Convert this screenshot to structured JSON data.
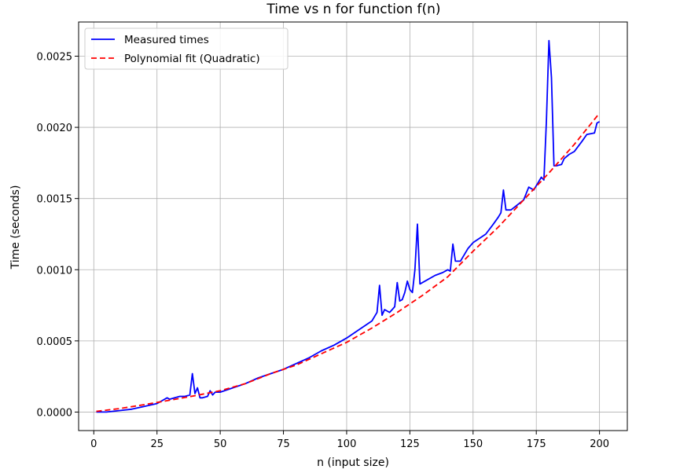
{
  "chart_data": {
    "type": "line",
    "title": "Time vs n for function f(n)",
    "xlabel": "n (input size)",
    "ylabel": "Time (seconds)",
    "xlim": [
      -6,
      211
    ],
    "ylim": [
      -0.00013,
      0.00274
    ],
    "xticks": [
      0,
      25,
      50,
      75,
      100,
      125,
      150,
      175,
      200
    ],
    "xtick_labels": [
      "0",
      "25",
      "50",
      "75",
      "100",
      "125",
      "150",
      "175",
      "200"
    ],
    "yticks": [
      0,
      0.0005,
      0.001,
      0.0015,
      0.002,
      0.0025
    ],
    "ytick_labels": [
      "0.0000",
      "0.0005",
      "0.0010",
      "0.0015",
      "0.0020",
      "0.0025"
    ],
    "grid": true,
    "legend_position": "top-left",
    "series": [
      {
        "name": "Measured times",
        "color": "#0000ff",
        "style": "solid",
        "x": [
          1,
          5,
          10,
          15,
          20,
          25,
          27,
          29,
          30,
          32,
          34,
          36,
          38,
          39,
          40,
          41,
          42,
          43,
          45,
          46,
          47,
          48,
          50,
          55,
          60,
          65,
          70,
          75,
          80,
          85,
          90,
          95,
          100,
          105,
          110,
          112,
          113,
          114,
          115,
          117,
          118,
          119,
          120,
          121,
          122,
          123,
          124,
          125,
          126,
          127,
          128,
          129,
          130,
          135,
          138,
          140,
          141,
          142,
          143,
          145,
          148,
          150,
          155,
          158,
          160,
          161,
          162,
          163,
          165,
          170,
          172,
          174,
          176,
          177,
          178,
          179,
          180,
          181,
          182,
          183,
          185,
          186,
          188,
          190,
          193,
          195,
          198,
          199,
          200
        ],
        "y": [
          0.0,
          0.0,
          1e-05,
          2e-05,
          4e-05,
          6e-05,
          8e-05,
          0.0001,
          9e-05,
          0.0001,
          0.00011,
          0.00011,
          0.00012,
          0.00027,
          0.00013,
          0.00017,
          0.0001,
          0.0001,
          0.00011,
          0.00015,
          0.00012,
          0.00014,
          0.00014,
          0.00017,
          0.0002,
          0.00024,
          0.00027,
          0.0003,
          0.00034,
          0.00038,
          0.00043,
          0.00047,
          0.00052,
          0.00058,
          0.00064,
          0.0007,
          0.00089,
          0.00068,
          0.00072,
          0.0007,
          0.00072,
          0.00074,
          0.00091,
          0.00078,
          0.00079,
          0.00084,
          0.00092,
          0.00086,
          0.00084,
          0.001,
          0.00132,
          0.0009,
          0.00091,
          0.00096,
          0.00098,
          0.001,
          0.00099,
          0.00118,
          0.00106,
          0.00106,
          0.00115,
          0.00119,
          0.00125,
          0.00132,
          0.00137,
          0.0014,
          0.00156,
          0.00142,
          0.00142,
          0.00149,
          0.00158,
          0.00156,
          0.00162,
          0.00165,
          0.00163,
          0.00205,
          0.00261,
          0.00235,
          0.00173,
          0.00173,
          0.00174,
          0.00178,
          0.00181,
          0.00183,
          0.0019,
          0.00195,
          0.00196,
          0.00203,
          0.00204
        ]
      },
      {
        "name": "Polynomial fit (Quadratic)",
        "color": "#ff0000",
        "style": "dashed",
        "x": [
          1,
          10,
          20,
          30,
          40,
          50,
          60,
          70,
          80,
          90,
          100,
          110,
          120,
          130,
          140,
          150,
          160,
          170,
          180,
          190,
          200
        ],
        "y": [
          5e-06,
          2.4e-05,
          5.2e-05,
          8.3e-05,
          0.000115,
          0.00015,
          0.0002,
          0.00027,
          0.00033,
          0.00041,
          0.00049,
          0.00059,
          0.0007,
          0.00082,
          0.00095,
          0.00113,
          0.0013,
          0.00149,
          0.00168,
          0.00188,
          0.0021
        ]
      }
    ]
  }
}
